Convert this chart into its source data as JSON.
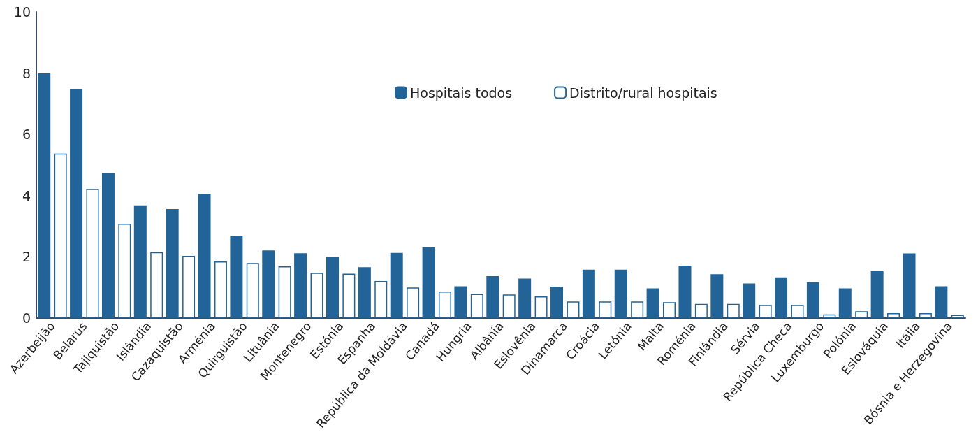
{
  "chart_data": {
    "type": "bar",
    "categories": [
      "Azerbeijão",
      "Belarus",
      "Tajiquistão",
      "Islândia",
      "Cazaquistão",
      "Arménia",
      "Quirguistão",
      "Lituânia",
      "Montenegro",
      "Estónia",
      "Espanha",
      "República da Moldávia",
      "Canadá",
      "Hungria",
      "Albânia",
      "Eslovênia",
      "Dinamarca",
      "Croácia",
      "Letónia",
      "Malta",
      "Roménia",
      "Finlândia",
      "Sérvia",
      "República Checa",
      "Luxemburgo",
      "Polónia",
      "Eslováquia",
      "Itália",
      "Bósnia e Herzegovina"
    ],
    "series": [
      {
        "name": "Hospitais todos",
        "color": "#236498",
        "values": [
          7.99,
          7.47,
          4.73,
          3.68,
          3.56,
          4.06,
          2.69,
          2.21,
          2.12,
          1.99,
          1.66,
          2.13,
          2.31,
          1.04,
          1.37,
          1.29,
          1.03,
          1.58,
          1.58,
          0.97,
          1.71,
          1.43,
          1.13,
          1.33,
          1.17,
          0.97,
          1.53,
          2.11,
          1.04
        ]
      },
      {
        "name": "Distrito/rural hospitais",
        "color": "#ffffff",
        "values": [
          5.37,
          4.22,
          3.08,
          2.15,
          2.03,
          1.85,
          1.8,
          1.69,
          1.48,
          1.45,
          1.21,
          1.0,
          0.87,
          0.79,
          0.77,
          0.71,
          0.54,
          0.54,
          0.54,
          0.52,
          0.46,
          0.46,
          0.43,
          0.43,
          0.12,
          0.22,
          0.16,
          0.16,
          0.1
        ]
      }
    ],
    "ylim": [
      0,
      10
    ],
    "yticks": [
      0,
      2,
      4,
      6,
      8,
      10
    ],
    "grid": false,
    "legend": "top right"
  }
}
